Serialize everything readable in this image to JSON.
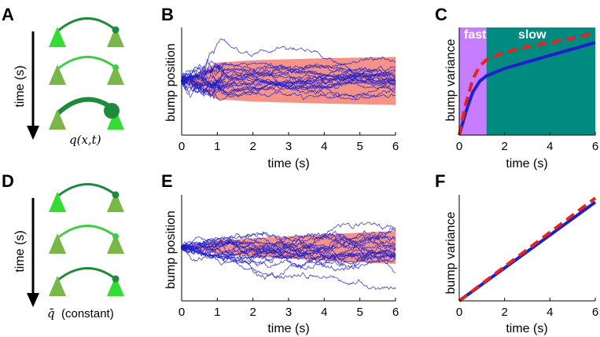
{
  "panels": {
    "A": {
      "label": "A",
      "axis_label": "time (s)",
      "caption": "q(x,t)"
    },
    "B": {
      "label": "B",
      "ylabel": "bump position",
      "xlabel": "time (s)"
    },
    "C": {
      "label": "C",
      "ylabel": "bump variance",
      "xlabel": "time (s)",
      "fast_label": "fast",
      "slow_label": "slow"
    },
    "D": {
      "label": "D",
      "axis_label": "time (s)",
      "caption_symbol": "q̄",
      "caption_text": "(constant)"
    },
    "E": {
      "label": "E",
      "ylabel": "bump position",
      "xlabel": "time (s)"
    },
    "F": {
      "label": "F",
      "ylabel": "bump variance",
      "xlabel": "time (s)"
    }
  },
  "colors": {
    "fast_region": "#c77dff",
    "slow_region": "#008b80",
    "trace": "#1f1fcc",
    "band": "#f4877a",
    "theory": "#e8231e",
    "neuron_bright": "#33dd33",
    "neuron_olive": "#7ab648",
    "synapse_dark": "#1e8a3c",
    "synapse_light": "#44cc44"
  },
  "chart_data": [
    {
      "id": "B",
      "type": "line",
      "xlabel": "time (s)",
      "ylabel": "bump position",
      "x_ticks": [
        0,
        1,
        2,
        3,
        4,
        5,
        6
      ],
      "xlim": [
        0,
        6
      ],
      "description_series": "many stochastic bump trajectories with shaded standard-deviation band that saturates",
      "band_halfwidth": [
        {
          "t": 0,
          "w": 0.0
        },
        {
          "t": 1,
          "w": 0.55
        },
        {
          "t": 2,
          "w": 0.62
        },
        {
          "t": 4,
          "w": 0.68
        },
        {
          "t": 6,
          "w": 0.72
        }
      ]
    },
    {
      "id": "C",
      "type": "line",
      "xlabel": "time (s)",
      "ylabel": "bump variance",
      "x_ticks": [
        0,
        2,
        4,
        6
      ],
      "xlim": [
        0,
        6
      ],
      "regions": [
        {
          "name": "fast",
          "from": 0,
          "to": 1.2
        },
        {
          "name": "slow",
          "from": 1.2,
          "to": 6
        }
      ],
      "series": [
        {
          "kind": "simulation",
          "x": [
            0,
            0.3,
            0.6,
            0.9,
            1.2,
            2,
            3,
            4,
            5,
            6
          ],
          "y": [
            0,
            0.22,
            0.4,
            0.5,
            0.55,
            0.62,
            0.68,
            0.74,
            0.8,
            0.86
          ]
        },
        {
          "kind": "theory",
          "x": [
            0,
            0.3,
            0.6,
            0.9,
            1.2,
            2,
            3,
            4,
            5,
            6
          ],
          "y": [
            0,
            0.3,
            0.52,
            0.64,
            0.7,
            0.77,
            0.82,
            0.86,
            0.9,
            0.95
          ]
        }
      ]
    },
    {
      "id": "E",
      "type": "line",
      "xlabel": "time (s)",
      "ylabel": "bump position",
      "x_ticks": [
        0,
        1,
        2,
        3,
        4,
        5,
        6
      ],
      "xlim": [
        0,
        6
      ],
      "band_halfwidth": [
        {
          "t": 0,
          "w": 0.0
        },
        {
          "t": 1,
          "w": 0.2
        },
        {
          "t": 2,
          "w": 0.28
        },
        {
          "t": 4,
          "w": 0.4
        },
        {
          "t": 6,
          "w": 0.5
        }
      ]
    },
    {
      "id": "F",
      "type": "line",
      "xlabel": "time (s)",
      "ylabel": "bump variance",
      "x_ticks": [
        0,
        2,
        4,
        6
      ],
      "xlim": [
        0,
        6
      ],
      "series": [
        {
          "kind": "simulation",
          "x": [
            0,
            6
          ],
          "y": [
            0,
            0.93
          ]
        },
        {
          "kind": "theory",
          "x": [
            0,
            6
          ],
          "y": [
            0,
            0.97
          ]
        }
      ]
    }
  ]
}
